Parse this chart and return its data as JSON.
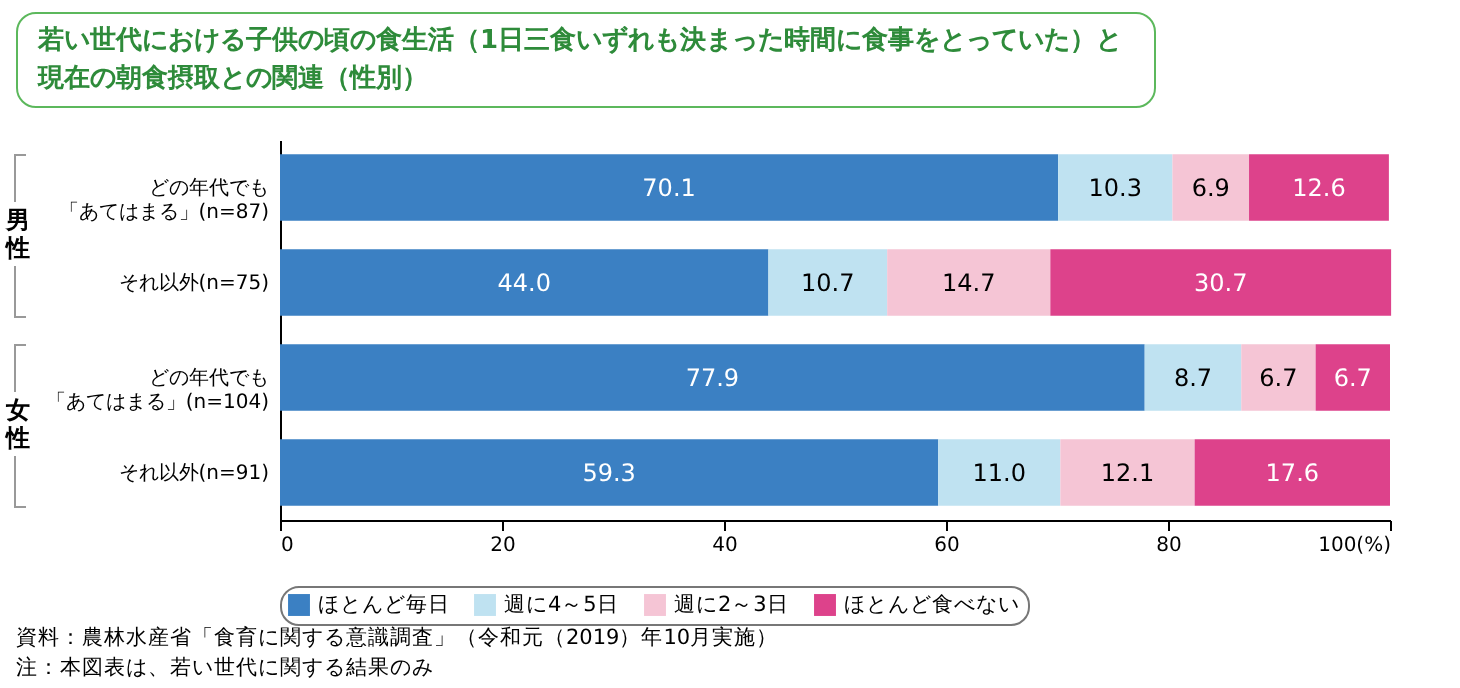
{
  "chart_data": {
    "type": "bar",
    "orientation": "horizontal",
    "stacked": true,
    "title": "若い世代における子供の頃の食生活（1日三食いずれも決まった時間に食事をとっていた）と現在の朝食摂取との関連（性別）",
    "categories": [
      "どの年代でも「あてはまる」(n=87)",
      "それ以外(n=75)",
      "どの年代でも「あてはまる」(n=104)",
      "それ以外(n=91)"
    ],
    "series": [
      {
        "name": "ほとんど毎日",
        "color": "#3b80c3",
        "values": [
          70.1,
          44.0,
          77.9,
          59.3
        ],
        "value_labels": [
          "70.1",
          "44.0",
          "77.9",
          "59.3"
        ]
      },
      {
        "name": "週に4～5日",
        "color": "#bfe2f1",
        "values": [
          10.3,
          10.7,
          8.7,
          11.0
        ],
        "value_labels": [
          "10.3",
          "10.7",
          "8.7",
          "11.0"
        ]
      },
      {
        "name": "週に2～3日",
        "color": "#f5c5d5",
        "values": [
          6.9,
          14.7,
          6.7,
          12.1
        ],
        "value_labels": [
          "6.9",
          "14.7",
          "6.7",
          "12.1"
        ]
      },
      {
        "name": "ほとんど食べない",
        "color": "#dd428b",
        "values": [
          12.6,
          30.7,
          6.7,
          17.6
        ],
        "value_labels": [
          "12.6",
          "30.7",
          "6.7",
          "17.6"
        ]
      }
    ],
    "xlim": [
      0,
      100
    ],
    "xticks": [
      0,
      20,
      40,
      60,
      80,
      {
        "value": 100,
        "label": "100(%)"
      }
    ],
    "legend": "bottom",
    "grid": false,
    "annotations": [
      "男性",
      "女性",
      "資料：農林水産省「食育に関する意識調査」（令和元（2019）年10月実施）",
      "注：本図表は、若い世代に関する結果のみ"
    ]
  }
}
